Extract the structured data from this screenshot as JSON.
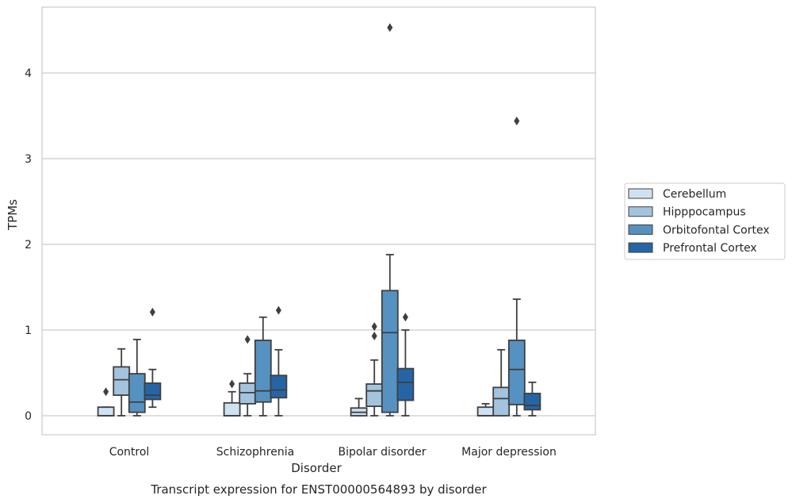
{
  "chart_data": {
    "type": "boxplot",
    "title": "Transcript expression for ENST00000564893 by disorder",
    "xlabel": "Disorder",
    "ylabel": "TPMs",
    "ylim": [
      -0.22,
      4.8
    ],
    "yticks": [
      0,
      1,
      2,
      3,
      4
    ],
    "grid": "horizontal",
    "legend_position": "right",
    "categories": [
      "Control",
      "Schizophrenia",
      "Bipolar disorder",
      "Major depression"
    ],
    "series": [
      {
        "name": "Cerebellum",
        "color": "#d0e1f2",
        "boxes": [
          {
            "whislo": 0,
            "q1": 0,
            "med": 0,
            "q3": 0.1,
            "whishi": 0.1,
            "fliers": [
              0.28
            ]
          },
          {
            "whislo": 0,
            "q1": 0,
            "med": 0,
            "q3": 0.15,
            "whishi": 0.28,
            "fliers": [
              0.37
            ]
          },
          {
            "whislo": 0,
            "q1": 0,
            "med": 0.04,
            "q3": 0.09,
            "whishi": 0.2,
            "fliers": []
          },
          {
            "whislo": 0,
            "q1": 0,
            "med": 0,
            "q3": 0.1,
            "whishi": 0.14,
            "fliers": []
          }
        ]
      },
      {
        "name": "Hipppocampus",
        "color": "#a3c4de",
        "boxes": [
          {
            "whislo": 0,
            "q1": 0.24,
            "med": 0.42,
            "q3": 0.57,
            "whishi": 0.78,
            "fliers": []
          },
          {
            "whislo": 0,
            "q1": 0.14,
            "med": 0.27,
            "q3": 0.38,
            "whishi": 0.49,
            "fliers": [
              0.89
            ]
          },
          {
            "whislo": 0,
            "q1": 0.11,
            "med": 0.29,
            "q3": 0.37,
            "whishi": 0.65,
            "fliers": [
              0.93,
              1.04
            ]
          },
          {
            "whislo": 0,
            "q1": 0,
            "med": 0.2,
            "q3": 0.33,
            "whishi": 0.77,
            "fliers": []
          }
        ]
      },
      {
        "name": "Orbitofontal Cortex",
        "color": "#5692c1",
        "boxes": [
          {
            "whislo": 0,
            "q1": 0.04,
            "med": 0.16,
            "q3": 0.49,
            "whishi": 0.89,
            "fliers": []
          },
          {
            "whislo": 0,
            "q1": 0.16,
            "med": 0.29,
            "q3": 0.88,
            "whishi": 1.15,
            "fliers": []
          },
          {
            "whislo": 0,
            "q1": 0.04,
            "med": 0.97,
            "q3": 1.46,
            "whishi": 1.88,
            "fliers": [
              4.53
            ]
          },
          {
            "whislo": 0,
            "q1": 0.13,
            "med": 0.54,
            "q3": 0.88,
            "whishi": 1.36,
            "fliers": [
              3.44
            ]
          }
        ]
      },
      {
        "name": "Prefrontal Cortex",
        "color": "#2565a6",
        "boxes": [
          {
            "whislo": 0.1,
            "q1": 0.19,
            "med": 0.24,
            "q3": 0.38,
            "whishi": 0.54,
            "fliers": [
              1.21
            ]
          },
          {
            "whislo": 0,
            "q1": 0.21,
            "med": 0.3,
            "q3": 0.47,
            "whishi": 0.77,
            "fliers": [
              1.23
            ]
          },
          {
            "whislo": 0,
            "q1": 0.18,
            "med": 0.39,
            "q3": 0.55,
            "whishi": 1.0,
            "fliers": [
              1.15
            ]
          },
          {
            "whislo": 0,
            "q1": 0.07,
            "med": 0.12,
            "q3": 0.26,
            "whishi": 0.39,
            "fliers": []
          }
        ]
      }
    ]
  }
}
